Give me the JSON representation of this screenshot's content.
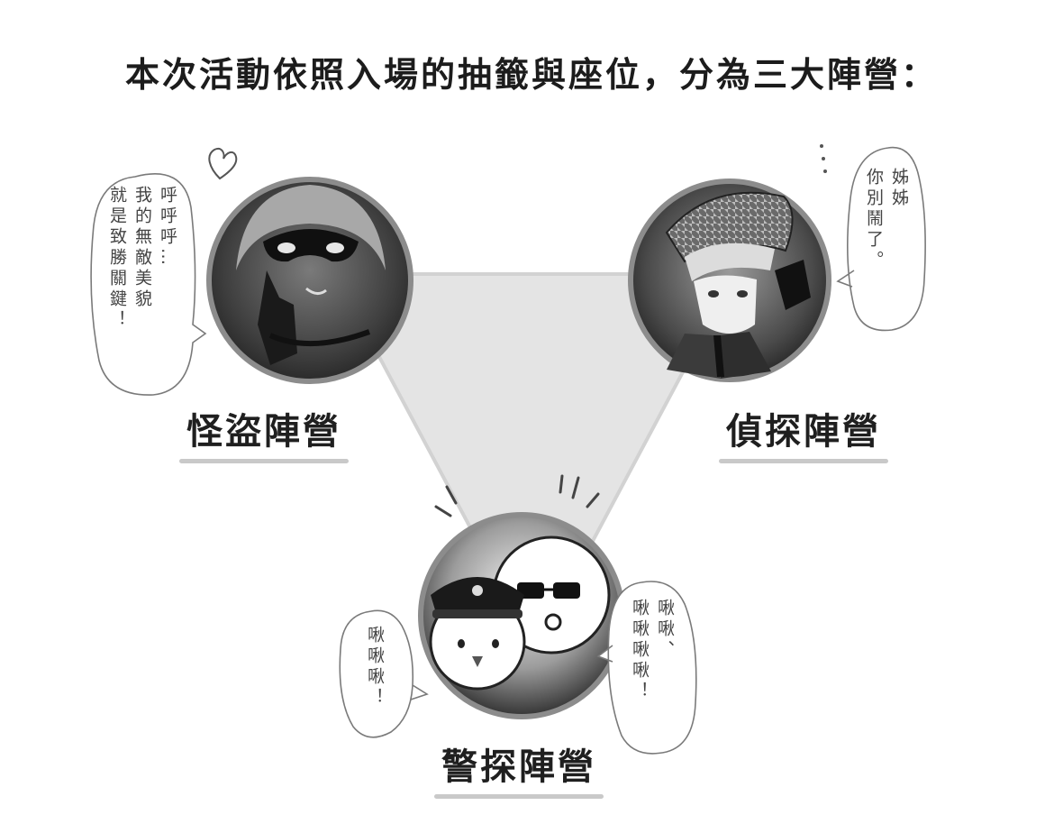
{
  "title": "本次活動依照入場的抽籤與座位，分為三大陣營：",
  "factions": [
    {
      "id": "thief",
      "label": "怪盜陣營",
      "speech_lines": [
        "呼呼呼…",
        "我的無敵美貌",
        "就是致勝關鍵！"
      ],
      "icon": "heart-icon"
    },
    {
      "id": "detective",
      "label": "偵探陣營",
      "speech_lines": [
        "姊姊",
        "你別鬧了。"
      ],
      "icon": "ellipsis-icon"
    },
    {
      "id": "police",
      "label": "警探陣營",
      "speech_left_lines": [
        "啾啾啾！"
      ],
      "speech_right_lines": [
        "啾啾、",
        "啾啾啾啾！"
      ],
      "icon": "surprise-marks-icon"
    }
  ],
  "colors": {
    "triangle_fill": "#e4e4e4",
    "triangle_edge": "#d2d2d2",
    "circle_border": "#8c8c8c",
    "underline": "#c9c9c9"
  }
}
